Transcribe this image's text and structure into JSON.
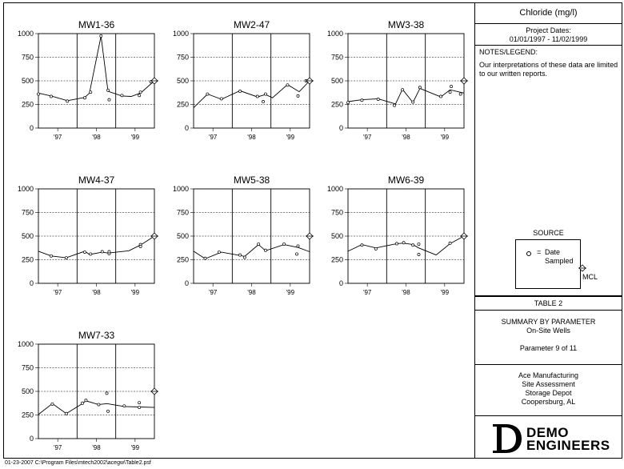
{
  "sidebar": {
    "parameter": "Chloride  (mg/l)",
    "project_dates_label": "Project Dates:",
    "project_dates_range": "01/01/1997 - 11/02/1999",
    "notes_title": "NOTES/LEGEND:",
    "notes_text": "Our interpretations of these data are limited to our written reports.",
    "source_title": "SOURCE",
    "source_eq": "=",
    "source_line1": "Date",
    "source_line2": "Sampled",
    "mcl_label": "MCL",
    "table_label": "TABLE 2",
    "summary_line1": "SUMMARY BY PARAMETER",
    "summary_line2": "On-Site Wells",
    "summary_line3": "Parameter 9 of 11",
    "client_line1": "Ace Manufacturing",
    "client_line2": "Site Assessment",
    "client_line3": "Storage Depot",
    "client_line4": "Coopersburg, AL",
    "logo_line1": "DEMO",
    "logo_line2": "ENGINEERS"
  },
  "footer": {
    "path": "01-23-2007  C:\\Program Files\\mtech2002\\acegw\\Table2.psf"
  },
  "chart_data": [
    {
      "type": "line",
      "title": "MW1-36",
      "ylim": [
        0,
        1000
      ],
      "yticks": [
        0,
        250,
        500,
        750,
        1000
      ],
      "xticks": [
        "'97",
        "'98",
        "'99"
      ],
      "mcl": 500,
      "line": [
        [
          0,
          370
        ],
        [
          0.11,
          340
        ],
        [
          0.25,
          290
        ],
        [
          0.4,
          325
        ],
        [
          0.44,
          370
        ],
        [
          0.54,
          975
        ],
        [
          0.6,
          390
        ],
        [
          0.72,
          340
        ],
        [
          0.8,
          335
        ],
        [
          0.88,
          370
        ],
        [
          1.0,
          500
        ]
      ],
      "samples": [
        [
          0,
          360
        ],
        [
          0.11,
          335
        ],
        [
          0.25,
          285
        ],
        [
          0.4,
          320
        ],
        [
          0.45,
          380
        ],
        [
          0.54,
          975
        ],
        [
          0.6,
          400
        ],
        [
          0.61,
          300
        ],
        [
          0.72,
          345
        ],
        [
          0.87,
          345
        ],
        [
          0.88,
          380
        ],
        [
          0.97,
          490
        ]
      ]
    },
    {
      "type": "line",
      "title": "MW2-47",
      "ylim": [
        0,
        1000
      ],
      "yticks": [
        0,
        250,
        500,
        750,
        1000
      ],
      "xticks": [
        "'97",
        "'98",
        "'99"
      ],
      "mcl": 500,
      "line": [
        [
          0,
          215
        ],
        [
          0.12,
          360
        ],
        [
          0.24,
          305
        ],
        [
          0.4,
          395
        ],
        [
          0.55,
          330
        ],
        [
          0.62,
          355
        ],
        [
          0.68,
          320
        ],
        [
          0.81,
          460
        ],
        [
          0.91,
          385
        ],
        [
          1.0,
          500
        ]
      ],
      "samples": [
        [
          0.12,
          360
        ],
        [
          0.24,
          310
        ],
        [
          0.4,
          390
        ],
        [
          0.55,
          335
        ],
        [
          0.6,
          280
        ],
        [
          0.62,
          360
        ],
        [
          0.81,
          455
        ],
        [
          0.9,
          340
        ],
        [
          0.97,
          500
        ]
      ]
    },
    {
      "type": "line",
      "title": "MW3-38",
      "ylim": [
        0,
        1000
      ],
      "yticks": [
        0,
        250,
        500,
        750,
        1000
      ],
      "xticks": [
        "'97",
        "'98",
        "'99"
      ],
      "mcl": 500,
      "line": [
        [
          0,
          280
        ],
        [
          0.12,
          300
        ],
        [
          0.26,
          310
        ],
        [
          0.41,
          255
        ],
        [
          0.47,
          410
        ],
        [
          0.56,
          270
        ],
        [
          0.62,
          420
        ],
        [
          0.8,
          330
        ],
        [
          0.88,
          405
        ],
        [
          1.0,
          370
        ]
      ],
      "samples": [
        [
          0,
          270
        ],
        [
          0.12,
          295
        ],
        [
          0.26,
          305
        ],
        [
          0.4,
          240
        ],
        [
          0.47,
          405
        ],
        [
          0.56,
          275
        ],
        [
          0.62,
          430
        ],
        [
          0.8,
          335
        ],
        [
          0.88,
          380
        ],
        [
          0.89,
          440
        ],
        [
          0.97,
          360
        ]
      ]
    },
    {
      "type": "line",
      "title": "MW4-37",
      "ylim": [
        0,
        1000
      ],
      "yticks": [
        0,
        250,
        500,
        750,
        1000
      ],
      "xticks": [
        "'97",
        "'98",
        "'99"
      ],
      "mcl": 500,
      "line": [
        [
          0,
          340
        ],
        [
          0.11,
          290
        ],
        [
          0.24,
          270
        ],
        [
          0.4,
          340
        ],
        [
          0.44,
          305
        ],
        [
          0.55,
          330
        ],
        [
          0.6,
          320
        ],
        [
          0.78,
          345
        ],
        [
          0.88,
          405
        ],
        [
          1.0,
          500
        ]
      ],
      "samples": [
        [
          0.11,
          290
        ],
        [
          0.24,
          270
        ],
        [
          0.4,
          330
        ],
        [
          0.45,
          310
        ],
        [
          0.55,
          335
        ],
        [
          0.61,
          315
        ],
        [
          0.61,
          335
        ],
        [
          0.88,
          410
        ],
        [
          0.88,
          390
        ]
      ]
    },
    {
      "type": "line",
      "title": "MW5-38",
      "ylim": [
        0,
        1000
      ],
      "yticks": [
        0,
        250,
        500,
        750,
        1000
      ],
      "xticks": [
        "'97",
        "'98",
        "'99"
      ],
      "mcl": 500,
      "line": [
        [
          0,
          340
        ],
        [
          0.1,
          260
        ],
        [
          0.24,
          330
        ],
        [
          0.4,
          295
        ],
        [
          0.44,
          285
        ],
        [
          0.56,
          410
        ],
        [
          0.62,
          345
        ],
        [
          0.78,
          410
        ],
        [
          0.9,
          380
        ],
        [
          1.0,
          335
        ]
      ],
      "samples": [
        [
          0.1,
          265
        ],
        [
          0.22,
          330
        ],
        [
          0.4,
          300
        ],
        [
          0.44,
          275
        ],
        [
          0.56,
          415
        ],
        [
          0.62,
          350
        ],
        [
          0.78,
          415
        ],
        [
          0.89,
          310
        ],
        [
          0.9,
          395
        ]
      ]
    },
    {
      "type": "line",
      "title": "MW6-39",
      "ylim": [
        0,
        1000
      ],
      "yticks": [
        0,
        250,
        500,
        750,
        1000
      ],
      "xticks": [
        "'97",
        "'98",
        "'99"
      ],
      "mcl": 500,
      "line": [
        [
          0,
          340
        ],
        [
          0.12,
          410
        ],
        [
          0.24,
          375
        ],
        [
          0.42,
          420
        ],
        [
          0.48,
          425
        ],
        [
          0.56,
          410
        ],
        [
          0.61,
          375
        ],
        [
          0.76,
          300
        ],
        [
          0.88,
          420
        ],
        [
          1.0,
          500
        ]
      ],
      "samples": [
        [
          0.12,
          405
        ],
        [
          0.24,
          365
        ],
        [
          0.42,
          420
        ],
        [
          0.48,
          430
        ],
        [
          0.56,
          405
        ],
        [
          0.61,
          415
        ],
        [
          0.61,
          305
        ],
        [
          0.88,
          425
        ]
      ]
    },
    {
      "type": "line",
      "title": "MW7-33",
      "ylim": [
        0,
        1000
      ],
      "yticks": [
        0,
        250,
        500,
        750,
        1000
      ],
      "xticks": [
        "'97",
        "'98",
        "'99"
      ],
      "mcl": 500,
      "line": [
        [
          0,
          255
        ],
        [
          0.12,
          370
        ],
        [
          0.24,
          265
        ],
        [
          0.38,
          370
        ],
        [
          0.41,
          400
        ],
        [
          0.52,
          360
        ],
        [
          0.59,
          370
        ],
        [
          0.74,
          340
        ],
        [
          0.87,
          335
        ],
        [
          1.0,
          330
        ]
      ],
      "samples": [
        [
          0.12,
          365
        ],
        [
          0.24,
          265
        ],
        [
          0.38,
          375
        ],
        [
          0.41,
          405
        ],
        [
          0.52,
          360
        ],
        [
          0.59,
          480
        ],
        [
          0.6,
          290
        ],
        [
          0.74,
          345
        ],
        [
          0.87,
          380
        ],
        [
          0.87,
          330
        ]
      ]
    }
  ]
}
